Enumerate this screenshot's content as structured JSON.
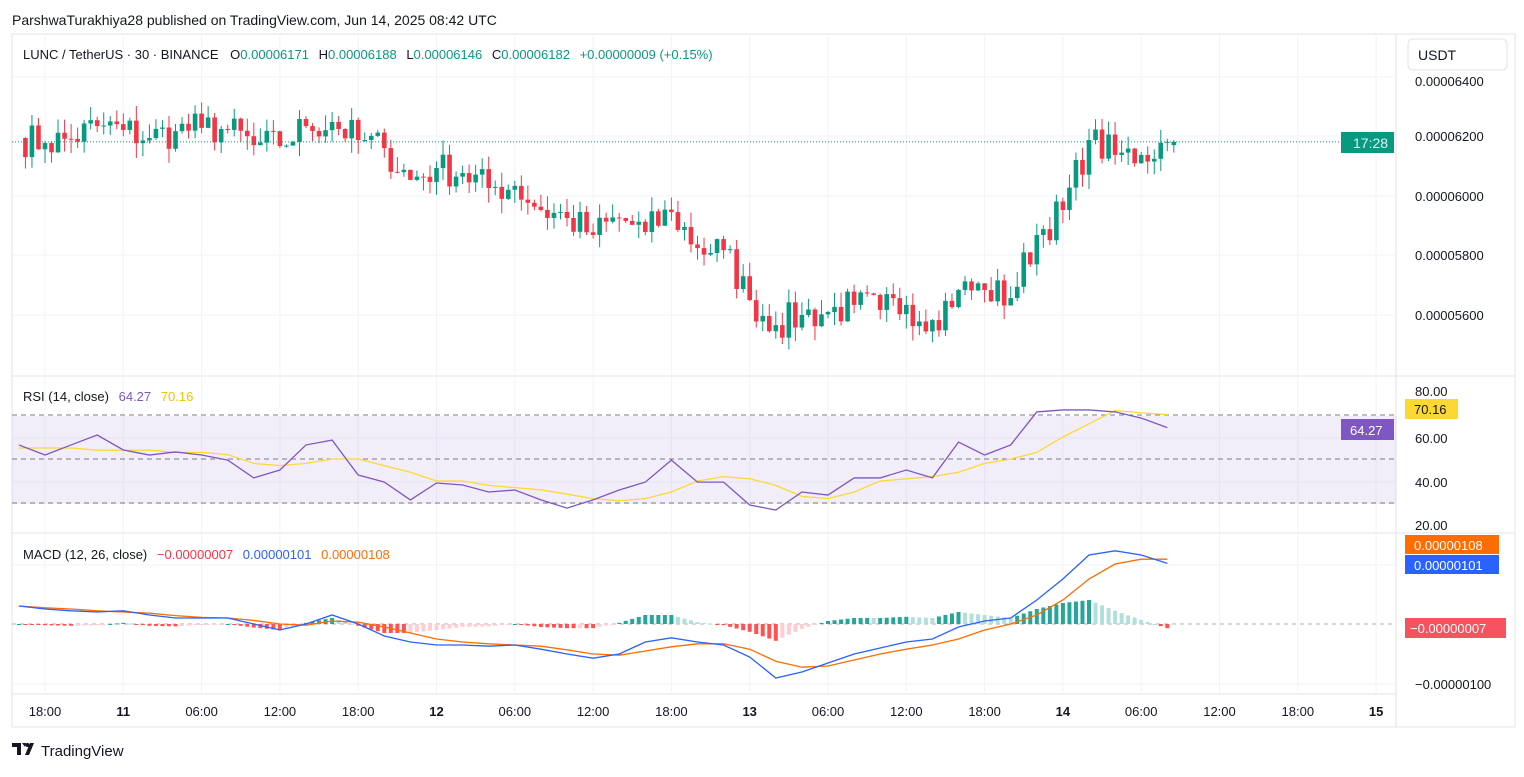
{
  "publish_line": "ParshwaTurakhiya28 published on TradingView.com, Jun 14, 2025 08:42 UTC",
  "footer_logo": "TradingView",
  "currency_button": "USDT",
  "countdown": "17:28",
  "legend": {
    "symbol": "LUNC / TetherUS · 30 · BINANCE",
    "o_label": "O",
    "o": "0.00006171",
    "h_label": "H",
    "h": "0.00006188",
    "l_label": "L",
    "l": "0.00006146",
    "c_label": "C",
    "c": "0.00006182",
    "change": "+0.00000009 (+0.15%)"
  },
  "rsi_legend": {
    "title": "RSI (14, close)",
    "rsi": "64.27",
    "ma": "70.16"
  },
  "macd_legend": {
    "title": "MACD (12, 26, close)",
    "hist": "−0.00000007",
    "macd": "0.00000101",
    "signal": "0.00000108"
  },
  "colors": {
    "up": "#089981",
    "down": "#f23645",
    "rsi": "#7e57c2",
    "rsi_ma": "#fdd835",
    "macd": "#2962ff",
    "signal": "#ff6d00"
  },
  "price_axis": [
    "0.00006400",
    "0.00006200",
    "0.00006000",
    "0.00005800",
    "0.00005600"
  ],
  "rsi_axis": [
    "80.00",
    "60.00",
    "40.00",
    "20.00"
  ],
  "macd_axis": [
    "−0.00000100"
  ],
  "time_axis": [
    "18:00",
    "11",
    "06:00",
    "12:00",
    "18:00",
    "12",
    "06:00",
    "12:00",
    "18:00",
    "13",
    "06:00",
    "12:00",
    "18:00",
    "14",
    "06:00",
    "12:00",
    "18:00",
    "15"
  ],
  "tags": {
    "rsi_ma": "70.16",
    "rsi": "64.27",
    "signal": "0.00000108",
    "macd": "0.00000101",
    "hist": "−0.00000007"
  },
  "chart_data": {
    "type": "candlestick",
    "interval": "30",
    "times": [
      "2025-06-10 16:00",
      "2025-06-10 18:00",
      "2025-06-10 20:00",
      "2025-06-10 22:00",
      "2025-06-11 00:00",
      "2025-06-11 02:00",
      "2025-06-11 04:00",
      "2025-06-11 06:00",
      "2025-06-11 08:00",
      "2025-06-11 10:00",
      "2025-06-11 12:00",
      "2025-06-11 14:00",
      "2025-06-11 16:00",
      "2025-06-11 18:00",
      "2025-06-11 20:00",
      "2025-06-11 22:00",
      "2025-06-12 00:00",
      "2025-06-12 02:00",
      "2025-06-12 04:00",
      "2025-06-12 06:00",
      "2025-06-12 08:00",
      "2025-06-12 10:00",
      "2025-06-12 12:00",
      "2025-06-12 14:00",
      "2025-06-12 16:00",
      "2025-06-12 18:00",
      "2025-06-12 20:00",
      "2025-06-12 22:00",
      "2025-06-13 00:00",
      "2025-06-13 02:00",
      "2025-06-13 04:00",
      "2025-06-13 06:00",
      "2025-06-13 08:00",
      "2025-06-13 10:00",
      "2025-06-13 12:00",
      "2025-06-13 14:00",
      "2025-06-13 16:00",
      "2025-06-13 18:00",
      "2025-06-13 20:00",
      "2025-06-13 22:00",
      "2025-06-14 00:00",
      "2025-06-14 02:00",
      "2025-06-14 04:00",
      "2025-06-14 06:00",
      "2025-06-14 08:00"
    ],
    "close": [
      6.195e-05,
      6.178e-05,
      6.192e-05,
      6.235e-05,
      6.222e-05,
      6.195e-05,
      6.218e-05,
      6.229e-05,
      6.222e-05,
      6.171e-05,
      6.168e-05,
      6.235e-05,
      6.249e-05,
      6.188e-05,
      6.161e-05,
      6.054e-05,
      6.094e-05,
      6.077e-05,
      6.027e-05,
      6.034e-05,
      5.953e-05,
      5.926e-05,
      5.869e-05,
      5.926e-05,
      5.879e-05,
      5.946e-05,
      5.825e-05,
      5.818e-05,
      5.65e-05,
      5.566e-05,
      5.6e-05,
      5.61e-05,
      5.634e-05,
      5.617e-05,
      5.634e-05,
      5.583e-05,
      5.684e-05,
      5.684e-05,
      5.657e-05,
      5.869e-05,
      5.953e-05,
      6.188e-05,
      6.138e-05,
      6.138e-05,
      6.182e-05
    ],
    "rsi": [
      56.4,
      51.8,
      56.4,
      60.9,
      54.1,
      51.8,
      53.2,
      51.8,
      49.5,
      41.4,
      45.0,
      56.4,
      58.6,
      42.7,
      39.5,
      31.4,
      39.1,
      38.2,
      35.0,
      35.9,
      31.4,
      27.7,
      31.4,
      35.9,
      39.5,
      49.5,
      39.5,
      39.5,
      29.1,
      26.8,
      35.0,
      33.6,
      41.4,
      41.4,
      45.0,
      41.4,
      57.7,
      51.8,
      56.4,
      71.4,
      72.3,
      72.3,
      71.4,
      68.6,
      64.27
    ],
    "rsi_ma": [
      55,
      55,
      55,
      54,
      54,
      54,
      53,
      53,
      52,
      48,
      47,
      48,
      50,
      50,
      47,
      44,
      40,
      40,
      38,
      37,
      36,
      34,
      32,
      31,
      32,
      35,
      40,
      42,
      41,
      38,
      33,
      32,
      35,
      40,
      41,
      42,
      44,
      48,
      50,
      53,
      60,
      66,
      72,
      71,
      70.16
    ],
    "macd": [
      3e-07,
      2.5e-07,
      2.2e-07,
      2e-07,
      2.2e-07,
      1.5e-07,
      1e-07,
      1e-07,
      1e-07,
      0.0,
      -1e-07,
      0.0,
      1.5e-07,
      0.0,
      -2e-07,
      -3e-07,
      -3.5e-07,
      -3.5e-07,
      -3.7e-07,
      -3.5e-07,
      -4.2e-07,
      -5e-07,
      -5.7e-07,
      -5e-07,
      -3e-07,
      -2.3e-07,
      -3e-07,
      -3.5e-07,
      -5.5e-07,
      -9e-07,
      -8e-07,
      -6.5e-07,
      -5e-07,
      -4e-07,
      -3e-07,
      -2.5e-07,
      -5e-08,
      5e-08,
      1e-07,
      4e-07,
      7.5e-07,
      1.15e-06,
      1.22e-06,
      1.15e-06,
      1.01e-06
    ],
    "signal": [
      3e-07,
      2.7e-07,
      2.5e-07,
      2.2e-07,
      2e-07,
      1.8e-07,
      1.4e-07,
      1.1e-07,
      1e-07,
      6e-08,
      0.0,
      -2e-08,
      5e-08,
      3e-08,
      -5e-08,
      -1.5e-07,
      -2.5e-07,
      -3e-07,
      -3.3e-07,
      -3.5e-07,
      -3.7e-07,
      -4.3e-07,
      -5e-07,
      -5.2e-07,
      -4.5e-07,
      -3.8e-07,
      -3.3e-07,
      -3.3e-07,
      -4.2e-07,
      -6.2e-07,
      -7.2e-07,
      -7e-07,
      -6e-07,
      -5e-07,
      -4.2e-07,
      -3.5e-07,
      -2.5e-07,
      -1e-07,
      0.0,
      1.5e-07,
      4e-07,
      7.5e-07,
      1e-06,
      1.08e-06,
      1.08e-06
    ],
    "last": {
      "open": 6.171e-05,
      "high": 6.188e-05,
      "low": 6.146e-05,
      "close": 6.182e-05
    },
    "price_range": [
      5.54e-05,
      6.45e-05
    ],
    "rsi_range": [
      20,
      80
    ],
    "rsi_levels": [
      70,
      50,
      30
    ],
    "grid": true
  }
}
